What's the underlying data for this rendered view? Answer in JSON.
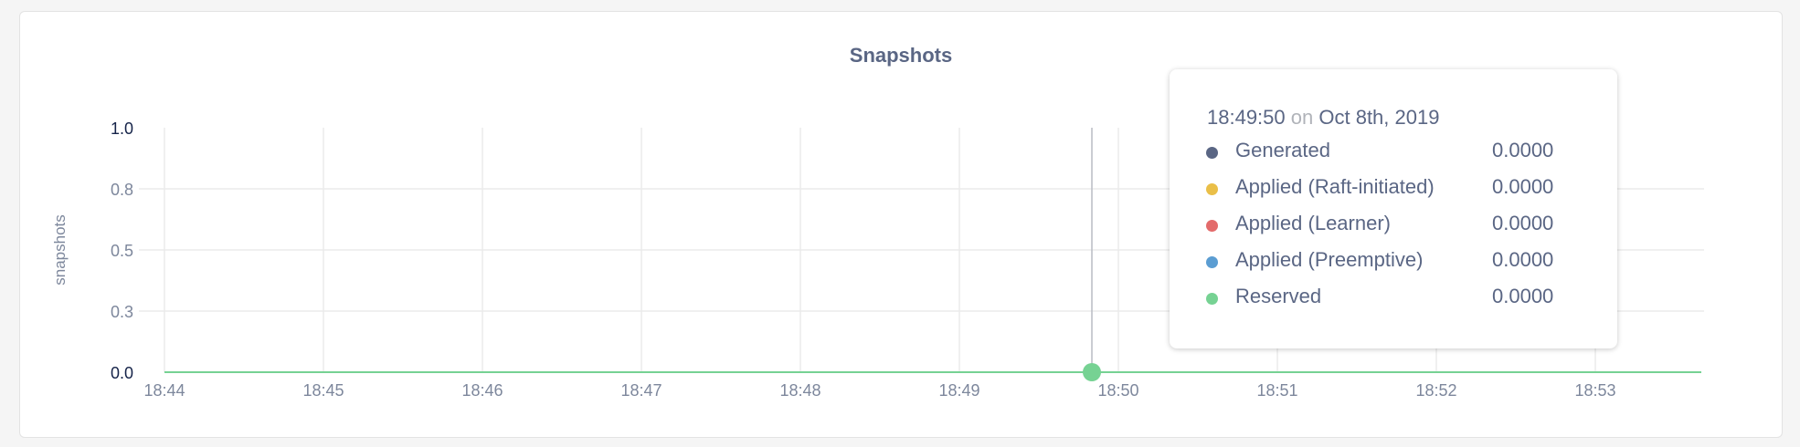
{
  "chart_data": {
    "type": "line",
    "title": "Snapshots",
    "ylabel": "snapshots",
    "xlabel": "",
    "ylim": [
      0,
      1.0
    ],
    "y_ticks": [
      "0.0",
      "0.3",
      "0.5",
      "0.8",
      "1.0"
    ],
    "x_ticks": [
      "18:44",
      "18:45",
      "18:46",
      "18:47",
      "18:48",
      "18:49",
      "18:50",
      "18:51",
      "18:52",
      "18:53"
    ],
    "grid": true,
    "series": [
      {
        "name": "Generated",
        "color": "#5a6684",
        "x": [
          "18:44",
          "18:53:40"
        ],
        "y": [
          0,
          0
        ]
      },
      {
        "name": "Applied (Raft-initiated)",
        "color": "#eabf48",
        "x": [
          "18:44",
          "18:53:40"
        ],
        "y": [
          0,
          0
        ]
      },
      {
        "name": "Applied (Learner)",
        "color": "#e36b6b",
        "x": [
          "18:44",
          "18:53:40"
        ],
        "y": [
          0,
          0
        ]
      },
      {
        "name": "Applied (Preemptive)",
        "color": "#5b9dd2",
        "x": [
          "18:44",
          "18:53:40"
        ],
        "y": [
          0,
          0
        ]
      },
      {
        "name": "Reserved",
        "color": "#76d293",
        "x": [
          "18:44",
          "18:53:40"
        ],
        "y": [
          0,
          0
        ]
      }
    ],
    "hover": {
      "time": "18:49:50",
      "on": "on",
      "date": "Oct 8th, 2019",
      "rows": [
        {
          "label": "Generated",
          "value": "0.0000",
          "color": "#5a6684"
        },
        {
          "label": "Applied (Raft-initiated)",
          "value": "0.0000",
          "color": "#eabf48"
        },
        {
          "label": "Applied (Learner)",
          "value": "0.0000",
          "color": "#e36b6b"
        },
        {
          "label": "Applied (Preemptive)",
          "value": "0.0000",
          "color": "#5b9dd2"
        },
        {
          "label": "Reserved",
          "value": "0.0000",
          "color": "#76d293"
        }
      ]
    }
  }
}
